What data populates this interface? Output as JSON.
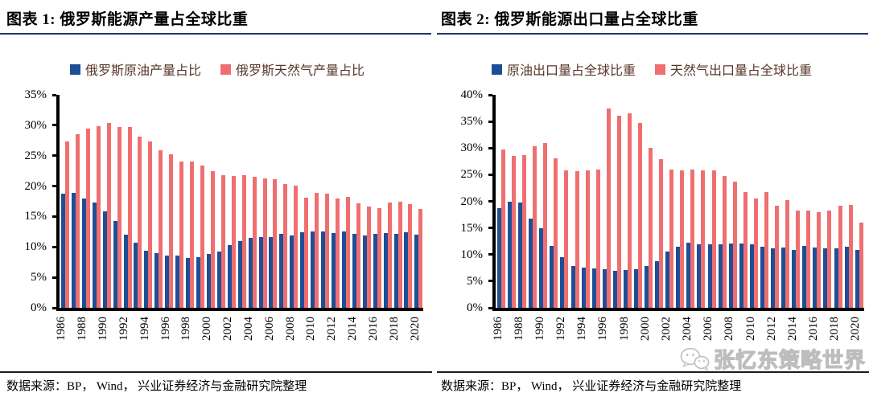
{
  "page": {
    "watermark": {
      "text": "张忆东策略世界",
      "icon": "wechat-icon"
    }
  },
  "chart_data": [
    {
      "type": "bar",
      "title": "图表 1: 俄罗斯能源产量占全球比重",
      "source": "数据来源：BP， Wind， 兴业证券经济与金融研究院整理",
      "ylim": [
        0,
        35
      ],
      "ytick_step": 5,
      "ytick_labels": [
        "0%",
        "5%",
        "10%",
        "15%",
        "20%",
        "25%",
        "30%",
        "35%"
      ],
      "x_tick_labels": [
        "1986",
        "1988",
        "1990",
        "1992",
        "1994",
        "1996",
        "1998",
        "2000",
        "2002",
        "2004",
        "2006",
        "2008",
        "2010",
        "2012",
        "2014",
        "2016",
        "2018",
        "2020"
      ],
      "grid": false,
      "legend_position": "top",
      "years": [
        1986,
        1987,
        1988,
        1989,
        1990,
        1991,
        1992,
        1993,
        1994,
        1995,
        1996,
        1997,
        1998,
        1999,
        2000,
        2001,
        2002,
        2003,
        2004,
        2005,
        2006,
        2007,
        2008,
        2009,
        2010,
        2011,
        2012,
        2013,
        2014,
        2015,
        2016,
        2017,
        2018,
        2019,
        2020
      ],
      "series": [
        {
          "name": "俄罗斯原油产量占比",
          "color": "#1e4e96",
          "values": [
            18.7,
            18.9,
            18.0,
            17.3,
            15.9,
            14.3,
            12.0,
            10.7,
            9.4,
            9.0,
            8.6,
            8.6,
            8.2,
            8.3,
            8.9,
            9.3,
            10.3,
            11.0,
            11.5,
            11.6,
            11.6,
            12.2,
            11.9,
            12.4,
            12.5,
            12.6,
            12.3,
            12.5,
            12.2,
            11.9,
            12.2,
            12.3,
            12.2,
            12.4,
            12.0
          ]
        },
        {
          "name": "俄罗斯天然气产量占比",
          "color": "#ef6f71",
          "values": [
            27.4,
            28.5,
            29.5,
            29.8,
            30.4,
            29.7,
            29.7,
            28.1,
            27.3,
            25.9,
            25.2,
            24.0,
            24.1,
            23.4,
            22.4,
            21.8,
            21.7,
            21.8,
            21.5,
            21.3,
            21.2,
            20.4,
            20.1,
            18.1,
            18.9,
            18.8,
            17.9,
            18.2,
            17.2,
            16.6,
            16.4,
            17.3,
            17.4,
            17.0,
            16.3
          ]
        }
      ]
    },
    {
      "type": "bar",
      "title": "图表 2: 俄罗斯能源出口量占全球比重",
      "source": "数据来源：BP， Wind， 兴业证券经济与金融研究院整理",
      "ylim": [
        0,
        40
      ],
      "ytick_step": 5,
      "ytick_labels": [
        "0%",
        "5%",
        "10%",
        "15%",
        "20%",
        "25%",
        "30%",
        "35%",
        "40%"
      ],
      "x_tick_labels": [
        "1986",
        "1988",
        "1990",
        "1992",
        "1994",
        "1996",
        "1998",
        "2000",
        "2002",
        "2004",
        "2006",
        "2008",
        "2010",
        "2012",
        "2014",
        "2016",
        "2018",
        "2020"
      ],
      "grid": false,
      "legend_position": "top",
      "years": [
        1986,
        1987,
        1988,
        1989,
        1990,
        1991,
        1992,
        1993,
        1994,
        1995,
        1996,
        1997,
        1998,
        1999,
        2000,
        2001,
        2002,
        2003,
        2004,
        2005,
        2006,
        2007,
        2008,
        2009,
        2010,
        2011,
        2012,
        2013,
        2014,
        2015,
        2016,
        2017,
        2018,
        2019,
        2020
      ],
      "series": [
        {
          "name": "原油出口量占全球比重",
          "color": "#1e4e96",
          "values": [
            18.7,
            20.0,
            19.8,
            16.8,
            15.0,
            11.6,
            9.5,
            7.8,
            7.6,
            7.4,
            7.2,
            6.9,
            7.1,
            7.3,
            7.9,
            8.7,
            10.5,
            11.5,
            12.2,
            12.0,
            12.0,
            12.0,
            12.1,
            12.1,
            11.9,
            11.4,
            11.1,
            11.3,
            10.9,
            11.6,
            11.3,
            11.1,
            11.1,
            11.5,
            10.8
          ]
        },
        {
          "name": "天然气出口量占全球比重",
          "color": "#ef6f71",
          "values": [
            29.7,
            28.5,
            28.7,
            30.4,
            30.9,
            28.1,
            25.8,
            25.7,
            25.8,
            25.9,
            37.4,
            36.1,
            36.6,
            34.7,
            30.0,
            27.9,
            25.9,
            25.8,
            25.9,
            25.8,
            25.8,
            24.7,
            23.7,
            21.8,
            20.5,
            21.8,
            19.2,
            20.3,
            18.2,
            18.2,
            18.0,
            18.3,
            19.1,
            19.3,
            16.0
          ]
        }
      ]
    }
  ]
}
